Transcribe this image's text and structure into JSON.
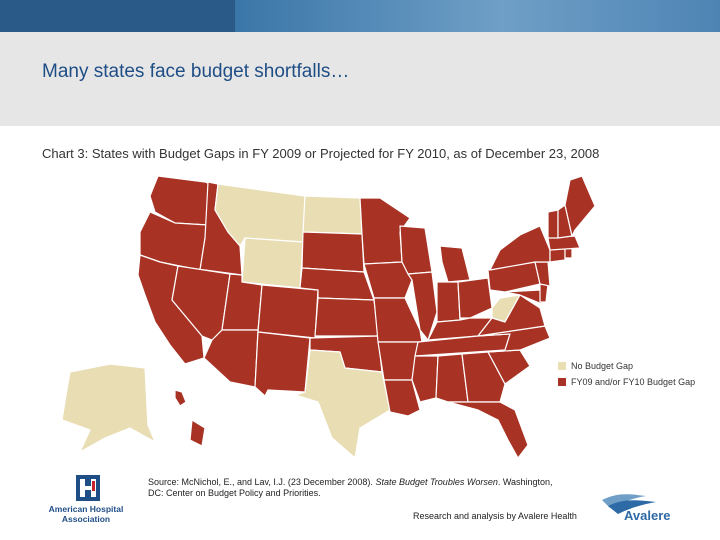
{
  "header": {
    "title": "Many states face budget shortfalls…",
    "subtitle": "Chart 3: States with Budget Gaps in FY 2009 or Projected for FY 2010, as of December 23, 2008"
  },
  "colors": {
    "gap": "#a83224",
    "no_gap": "#e9ddb4",
    "border": "#ffffff",
    "title": "#1f4e86"
  },
  "legend": {
    "no_gap_label": "No Budget Gap",
    "gap_label": "FY09 and/or FY10 Budget Gap"
  },
  "map_data": {
    "no_budget_gap_states": [
      "Montana",
      "North Dakota",
      "Wyoming",
      "Texas",
      "West Virginia",
      "Alaska"
    ],
    "budget_gap_states": [
      "Washington",
      "Oregon",
      "California",
      "Idaho",
      "Nevada",
      "Utah",
      "Arizona",
      "Colorado",
      "New Mexico",
      "South Dakota",
      "Nebraska",
      "Kansas",
      "Oklahoma",
      "Minnesota",
      "Iowa",
      "Missouri",
      "Arkansas",
      "Louisiana",
      "Wisconsin",
      "Illinois",
      "Michigan",
      "Indiana",
      "Ohio",
      "Kentucky",
      "Tennessee",
      "Mississippi",
      "Alabama",
      "Georgia",
      "Florida",
      "South Carolina",
      "North Carolina",
      "Virginia",
      "Maryland",
      "Delaware",
      "New Jersey",
      "Pennsylvania",
      "New York",
      "Connecticut",
      "Rhode Island",
      "Massachusetts",
      "Vermont",
      "New Hampshire",
      "Maine",
      "Hawaii"
    ]
  },
  "footer": {
    "source_prefix": "Source: McNichol, E., and Lav, I.J. (23 December 2008). ",
    "source_title": "State Budget Troubles Worsen",
    "source_suffix": ". Washington, DC: Center on Budget Policy and Priorities.",
    "research_credit": "Research and analysis by Avalere Health",
    "aha_name_line1": "American Hospital",
    "aha_name_line2": "Association",
    "avalere_name": "Avalere"
  }
}
